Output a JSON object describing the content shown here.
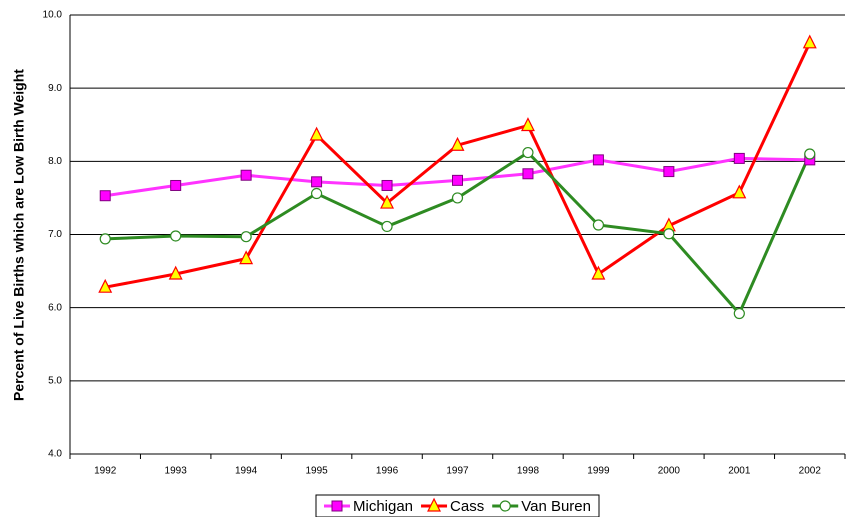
{
  "chart_data": {
    "type": "line",
    "y_label": "Percent of Live Births which are Low Birth Weight",
    "categories": [
      "1992",
      "1993",
      "1994",
      "1995",
      "1996",
      "1997",
      "1998",
      "1999",
      "2000",
      "2001",
      "2002"
    ],
    "series": [
      {
        "name": "Michigan",
        "color": "#ff33ff",
        "marker": "square",
        "values": [
          7.53,
          7.67,
          7.81,
          7.72,
          7.67,
          7.74,
          7.83,
          8.02,
          7.86,
          8.04,
          8.02
        ]
      },
      {
        "name": "Cass",
        "color": "#ff0000",
        "marker": "triangle",
        "values": [
          6.28,
          6.46,
          6.67,
          8.36,
          7.43,
          8.22,
          8.49,
          6.46,
          7.12,
          7.57,
          9.62
        ]
      },
      {
        "name": "Van Buren",
        "color": "#2e8b22",
        "marker": "circle",
        "values": [
          6.94,
          6.98,
          6.97,
          7.56,
          7.11,
          7.5,
          8.12,
          7.13,
          7.01,
          5.92,
          8.1
        ]
      }
    ],
    "ylim": [
      4,
      10
    ],
    "yticks": [
      {
        "value": 4,
        "label": "4.0"
      },
      {
        "value": 5,
        "label": "5.0"
      },
      {
        "value": 6,
        "label": "6.0"
      },
      {
        "value": 7,
        "label": "7.0"
      },
      {
        "value": 8,
        "label": "8.0"
      },
      {
        "value": 9,
        "label": "9.0"
      },
      {
        "value": 10,
        "label": "10.0"
      }
    ],
    "grid": true,
    "legend": "bottom"
  }
}
